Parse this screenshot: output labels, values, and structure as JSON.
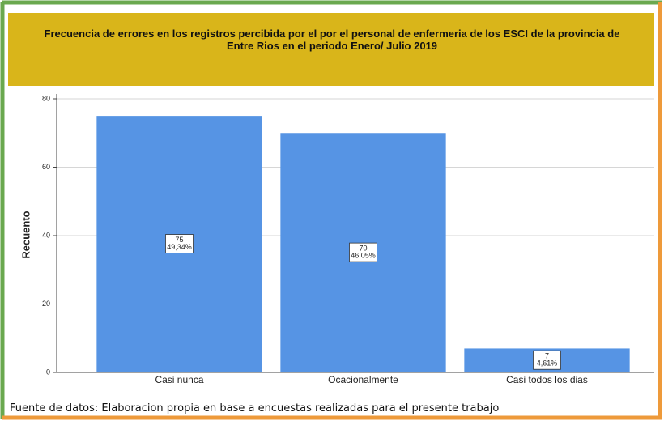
{
  "chart_data": {
    "type": "bar",
    "title": "Frecuencia de errores en los registros percibida por el por el personal de enfermeria de los ESCI de la provincia de Entre Rios en el periodo Enero/ Julio 2019",
    "ylabel": "Recuento",
    "categories": [
      "Casi nunca",
      "Ocacionalmente",
      "Casi todos los dias"
    ],
    "values": [
      75,
      70,
      7
    ],
    "percent_labels": [
      "49,34%",
      "46,05%",
      "4,61%"
    ],
    "color": "#5694e4",
    "ylim": [
      0,
      80
    ],
    "yticks": [
      0,
      20,
      40,
      60,
      80
    ],
    "grid": true,
    "source": "Fuente de datos: Elaboracion propia en base a encuestas realizadas para el presente trabajo"
  }
}
